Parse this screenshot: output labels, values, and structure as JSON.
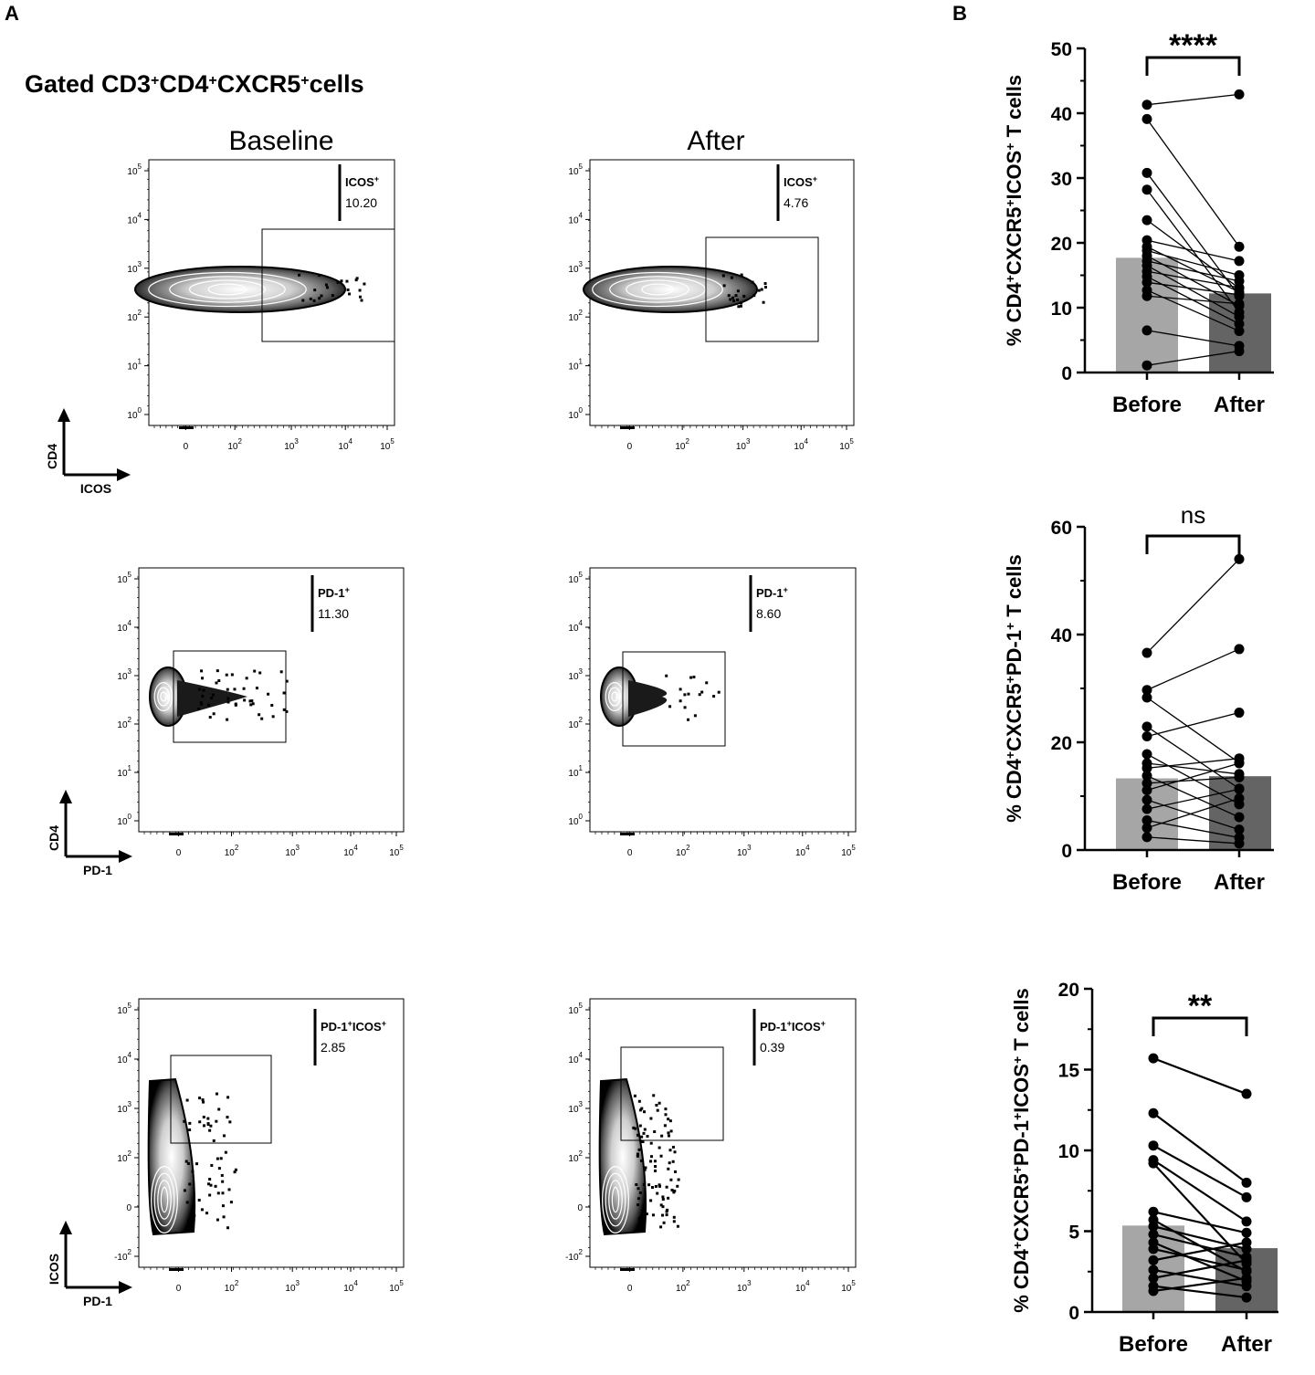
{
  "panel_a_label": "A",
  "panel_b_label": "B",
  "header_prefix": "Gated ",
  "header_segments": [
    {
      "text": "CD3",
      "sup": "+"
    },
    {
      "text": "CD4",
      "sup": "+"
    },
    {
      "text": "CXCR5",
      "sup": "+"
    },
    {
      "text": "cells",
      "sup": ""
    }
  ],
  "columns": [
    "Baseline",
    "After"
  ],
  "flow_tick_labels": [
    "0",
    "10",
    "10",
    "10",
    "10"
  ],
  "flow_tick_exponents": [
    "",
    "2",
    "3",
    "4",
    "5"
  ],
  "flow_rows": [
    {
      "x_axis": "ICOS",
      "y_axis": "CD4",
      "y_ticks": [
        {
          "base": "10",
          "exp": "0"
        },
        {
          "base": "10",
          "exp": "1"
        },
        {
          "base": "10",
          "exp": "2"
        },
        {
          "base": "10",
          "exp": "3"
        },
        {
          "base": "10",
          "exp": "4"
        },
        {
          "base": "10",
          "exp": "5"
        }
      ],
      "plots": [
        {
          "gate_label": "ICOS",
          "gate_sup": "+",
          "gate_value": "10.20"
        },
        {
          "gate_label": "ICOS",
          "gate_sup": "+",
          "gate_value": "4.76"
        }
      ]
    },
    {
      "x_axis": "PD-1",
      "y_axis": "CD4",
      "y_ticks": [
        {
          "base": "10",
          "exp": "0"
        },
        {
          "base": "10",
          "exp": "1"
        },
        {
          "base": "10",
          "exp": "2"
        },
        {
          "base": "10",
          "exp": "3"
        },
        {
          "base": "10",
          "exp": "4"
        },
        {
          "base": "10",
          "exp": "5"
        }
      ],
      "plots": [
        {
          "gate_label": "PD-1",
          "gate_sup": "+",
          "gate_value": "11.30"
        },
        {
          "gate_label": "PD-1",
          "gate_sup": "+",
          "gate_value": "8.60"
        }
      ]
    },
    {
      "x_axis": "PD-1",
      "y_axis": "ICOS",
      "y_ticks": [
        {
          "base": "-10",
          "exp": "2"
        },
        {
          "base": "0",
          "exp": ""
        },
        {
          "base": "10",
          "exp": "2"
        },
        {
          "base": "10",
          "exp": "3"
        },
        {
          "base": "10",
          "exp": "4"
        },
        {
          "base": "10",
          "exp": "5"
        }
      ],
      "plots": [
        {
          "gate_label": "PD-1",
          "gate_sup": "+",
          "gate_label2": "ICOS",
          "gate_sup2": "+",
          "gate_value": "2.85"
        },
        {
          "gate_label": "PD-1",
          "gate_sup": "+",
          "gate_label2": "ICOS",
          "gate_sup2": "+",
          "gate_value": "0.39"
        }
      ]
    }
  ],
  "chart_data": [
    {
      "type": "bar",
      "categories": [
        "Before",
        "After"
      ],
      "values": [
        17.7,
        12.2
      ],
      "ylim": [
        0,
        50
      ],
      "yticks": [
        0,
        10,
        20,
        30,
        40,
        50
      ],
      "ylabel_segments": [
        {
          "text": "% CD4",
          "sup": "+"
        },
        {
          "text": "CXCR5",
          "sup": "+"
        },
        {
          "text": "ICOS",
          "sup": "+"
        },
        {
          "text": " T cells",
          "sup": ""
        }
      ],
      "significance": "****",
      "paired_points": [
        [
          41.3,
          42.9
        ],
        [
          39.1,
          19.4
        ],
        [
          30.8,
          11.8
        ],
        [
          28.2,
          9.3
        ],
        [
          23.5,
          13.0
        ],
        [
          20.4,
          17.2
        ],
        [
          19.4,
          12.4
        ],
        [
          18.8,
          15.0
        ],
        [
          18.0,
          10.3
        ],
        [
          17.2,
          14.1
        ],
        [
          16.5,
          8.6
        ],
        [
          15.6,
          13.1
        ],
        [
          14.8,
          7.5
        ],
        [
          13.9,
          12.0
        ],
        [
          12.7,
          6.4
        ],
        [
          11.8,
          10.6
        ],
        [
          6.5,
          4.1
        ],
        [
          1.1,
          3.3
        ]
      ]
    },
    {
      "type": "bar",
      "categories": [
        "Before",
        "After"
      ],
      "values": [
        13.3,
        13.7
      ],
      "ylim": [
        0,
        60
      ],
      "yticks": [
        0,
        20,
        40,
        60
      ],
      "ylabel_segments": [
        {
          "text": "% CD4",
          "sup": "+"
        },
        {
          "text": "CXCR5",
          "sup": "+"
        },
        {
          "text": "PD-1",
          "sup": "+"
        },
        {
          "text": " T cells",
          "sup": ""
        }
      ],
      "significance": "ns",
      "paired_points": [
        [
          36.6,
          54.0
        ],
        [
          29.7,
          37.3
        ],
        [
          28.3,
          16.2
        ],
        [
          22.9,
          11.4
        ],
        [
          21.1,
          25.5
        ],
        [
          17.8,
          8.5
        ],
        [
          16.1,
          14.1
        ],
        [
          15.2,
          17.0
        ],
        [
          13.8,
          6.1
        ],
        [
          12.4,
          13.5
        ],
        [
          11.1,
          16.1
        ],
        [
          9.3,
          3.8
        ],
        [
          7.6,
          11.3
        ],
        [
          5.5,
          2.3
        ],
        [
          4.1,
          9.6
        ],
        [
          2.4,
          1.2
        ]
      ]
    },
    {
      "type": "bar",
      "categories": [
        "Before",
        "After"
      ],
      "values": [
        5.35,
        3.95
      ],
      "ylim": [
        0,
        20
      ],
      "yticks": [
        0,
        5,
        10,
        15,
        20
      ],
      "ylabel_segments": [
        {
          "text": "% CD4",
          "sup": "+"
        },
        {
          "text": "CXCR5",
          "sup": "+"
        },
        {
          "text": "PD-1",
          "sup": "+"
        },
        {
          "text": "ICOS",
          "sup": "+"
        },
        {
          "text": " T cells",
          "sup": ""
        }
      ],
      "significance": "**",
      "paired_points": [
        [
          15.7,
          13.5
        ],
        [
          12.3,
          8.0
        ],
        [
          10.3,
          7.1
        ],
        [
          9.4,
          5.6
        ],
        [
          9.2,
          3.0
        ],
        [
          6.2,
          4.9
        ],
        [
          5.7,
          2.5
        ],
        [
          5.3,
          3.9
        ],
        [
          4.8,
          3.4
        ],
        [
          4.3,
          1.9
        ],
        [
          3.9,
          2.6
        ],
        [
          3.2,
          4.3
        ],
        [
          2.6,
          1.6
        ],
        [
          2.1,
          3.2
        ],
        [
          1.6,
          0.9
        ],
        [
          1.3,
          2.1
        ]
      ]
    }
  ]
}
